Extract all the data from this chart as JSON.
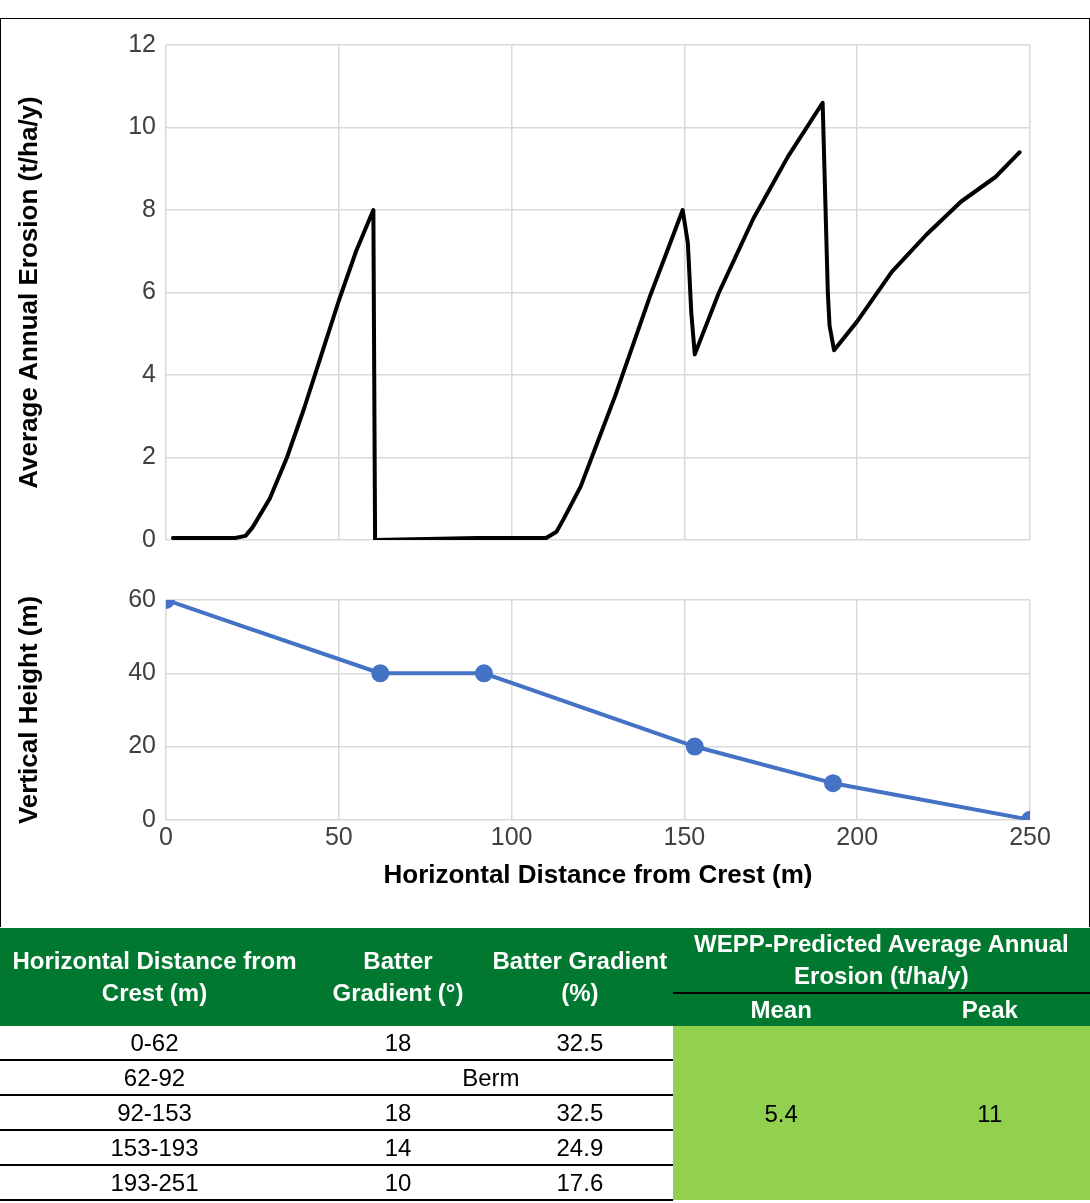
{
  "chart_data": [
    {
      "type": "line",
      "ylabel": "Average Annual Erosion (t/ha/y)",
      "xlim": [
        0,
        250
      ],
      "xticks": [
        0,
        50,
        100,
        150,
        200,
        250
      ],
      "ylim": [
        0,
        12
      ],
      "yticks": [
        0,
        2,
        4,
        6,
        8,
        10,
        12
      ],
      "grid": true,
      "legend": false,
      "tick_labels": "y",
      "marker": "none",
      "line_style": "solid",
      "series": [
        {
          "color": "#000000",
          "x": [
            2,
            20,
            23,
            25,
            30,
            35,
            40,
            45,
            50,
            55,
            60,
            60.5,
            90,
            110,
            113,
            115,
            120,
            125,
            130,
            135,
            140,
            145,
            149.5,
            151,
            152,
            153,
            160,
            170,
            180,
            190,
            191.5,
            192,
            193.3,
            200,
            210,
            220,
            230,
            240,
            247
          ],
          "values": [
            0.05,
            0.05,
            0.1,
            0.3,
            1,
            2,
            3.2,
            4.5,
            5.8,
            7,
            8,
            0,
            0.05,
            0.05,
            0.2,
            0.5,
            1.3,
            2.4,
            3.5,
            4.7,
            5.9,
            7,
            8,
            7.2,
            5.5,
            4.5,
            6,
            7.8,
            9.3,
            10.6,
            6,
            5.2,
            4.6,
            5.3,
            6.5,
            7.4,
            8.2,
            8.8,
            9.4
          ]
        }
      ]
    },
    {
      "type": "line",
      "xlabel": "Horizontal Distance from Crest (m)",
      "ylabel": "Vertical Height (m)",
      "xlim": [
        0,
        250
      ],
      "xticks": [
        0,
        50,
        100,
        150,
        200,
        250
      ],
      "ylim": [
        0,
        60
      ],
      "yticks": [
        0,
        20,
        40,
        60
      ],
      "grid": true,
      "legend": false,
      "marker": "circle",
      "line_style": "solid",
      "series": [
        {
          "color": "#4472c4",
          "x": [
            0,
            62,
            92,
            153,
            193,
            250
          ],
          "values": [
            60,
            40,
            40,
            20,
            10,
            0
          ]
        }
      ]
    },
    {
      "type": "other",
      "title": "WEPP-Predicted Average Annual Erosion (t/ha/y)",
      "categories": [
        "Horizontal Distance from Crest (m)",
        "Batter Gradient (°)",
        "Batter Gradient (%)",
        "Mean",
        "Peak"
      ],
      "cell_labels": [
        [
          "0-62",
          "18",
          "32.5",
          "5.4",
          "11"
        ],
        [
          "62-92",
          "Berm",
          null,
          null,
          null
        ],
        [
          "92-153",
          "18",
          "32.5",
          null,
          null
        ],
        [
          "153-193",
          "14",
          "24.9",
          null,
          null
        ],
        [
          "193-251",
          "10",
          "17.6",
          null,
          null
        ]
      ]
    }
  ]
}
